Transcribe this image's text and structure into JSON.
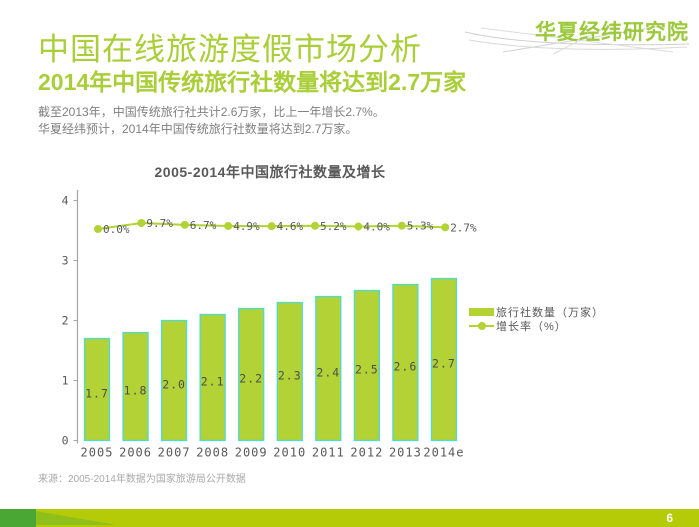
{
  "logo": {
    "text": "华夏经纬研究院"
  },
  "header": {
    "title": "中国在线旅游度假市场分析",
    "subtitle": "2014年中国传统旅行社数量将达到2.7万家",
    "body_lines": [
      "截至2013年，中国传统旅行社共计2.6万家，比上一年增长2.7%。",
      "华夏经纬预计，2014年中国传统旅行社数量将达到2.7万家。"
    ]
  },
  "chart_data": {
    "type": "bar",
    "title": "2005-2014年中国旅行社数量及增长",
    "categories": [
      "2005",
      "2006",
      "2007",
      "2008",
      "2009",
      "2010",
      "2011",
      "2012",
      "2013",
      "2014e"
    ],
    "series": [
      {
        "name": "旅行社数量（万家）",
        "type": "bar",
        "values": [
          1.7,
          1.8,
          2.0,
          2.1,
          2.2,
          2.3,
          2.4,
          2.5,
          2.6,
          2.7
        ]
      },
      {
        "name": "增长率（%）",
        "type": "line",
        "values": [
          0.0,
          9.7,
          6.7,
          4.9,
          4.6,
          5.2,
          4.0,
          5.3,
          2.7
        ],
        "labels": [
          "0.0%",
          "9.7%",
          "6.7%",
          "4.9%",
          "4.6%",
          "5.2%",
          "4.0%",
          "5.3%",
          "2.7%"
        ]
      }
    ],
    "ylim": [
      0,
      4
    ],
    "yticks": [
      0,
      1,
      2,
      3,
      4
    ],
    "grid": false,
    "legend_position": "right"
  },
  "footer": {
    "source": "来源：2005-2014年数据为国家旅游局公开数据",
    "page": "6"
  },
  "colors": {
    "accent_green": "#a9ce38",
    "logo_green": "#9bc93a",
    "bar_green": "#b2d235",
    "bar_border": "#4edbd0",
    "deep_green": "#4ba733",
    "mid_green": "#8fbf1b",
    "bar_chartreuse": "#b5cb08",
    "axis_gray": "#a6a6a6",
    "text_gray": "#595959"
  }
}
